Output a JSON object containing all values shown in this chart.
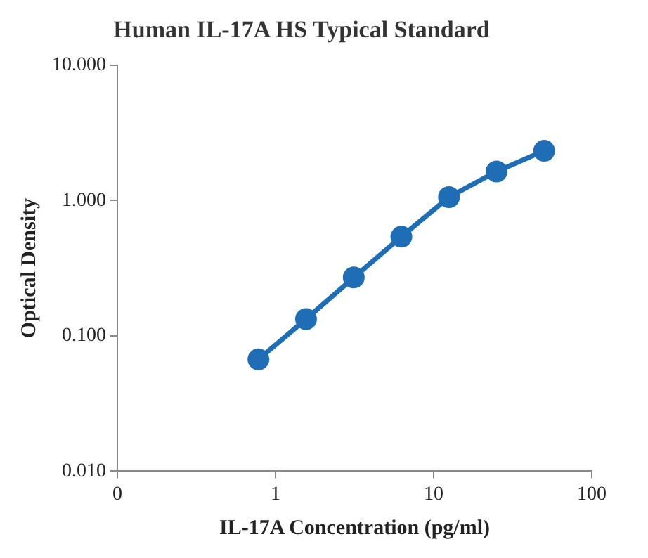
{
  "chart_data": {
    "type": "line",
    "title": "Human IL-17A HS Typical Standard",
    "xlabel": "IL-17A Concentration (pg/ml)",
    "ylabel": "Optical Density",
    "x": [
      0.78,
      1.56,
      3.125,
      6.25,
      12.5,
      25,
      50
    ],
    "series": [
      {
        "color": "#1f6eb5",
        "values": [
          0.067,
          0.133,
          0.27,
          0.54,
          1.06,
          1.64,
          2.33
        ]
      }
    ],
    "log": "xy",
    "xlim": [
      0.1,
      100
    ],
    "xticks": [
      {
        "value": 0.1,
        "label": "0"
      },
      1,
      10,
      100
    ],
    "ylim": [
      0.01,
      10
    ],
    "yticks": [
      {
        "value": 0.01,
        "label": "0.010"
      },
      {
        "value": 0.1,
        "label": "0.100"
      },
      {
        "value": 1,
        "label": "1.000"
      },
      {
        "value": 10,
        "label": "10.000"
      }
    ],
    "grid": false,
    "legend": false,
    "marker": "circle",
    "line_style": "solid"
  }
}
